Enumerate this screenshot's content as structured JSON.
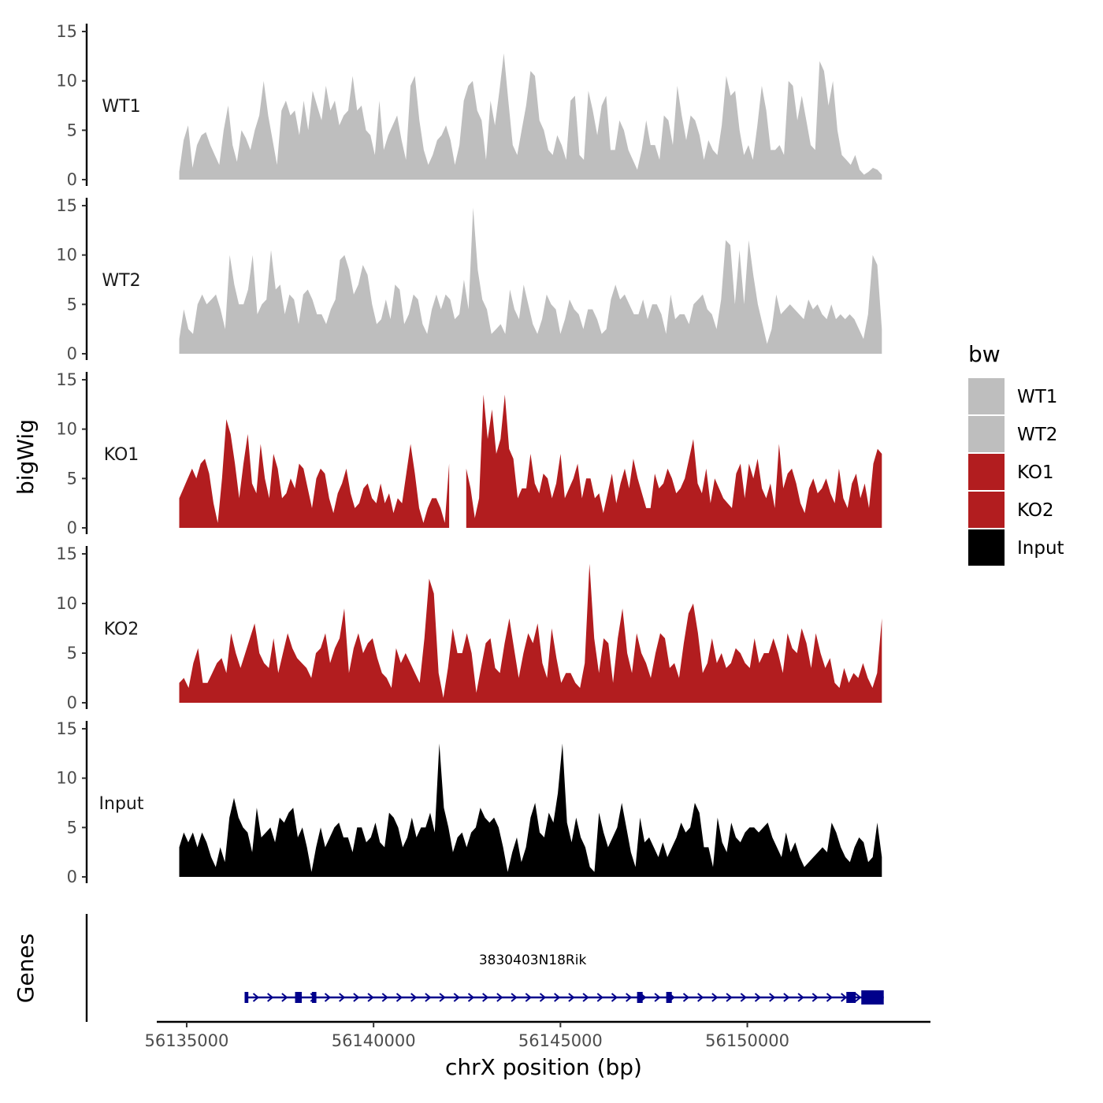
{
  "chart_data": {
    "type": "area",
    "ylabel": "bigWig",
    "genes_label": "Genes",
    "xlabel": "chrX position (bp)",
    "xlim": [
      56134200,
      56154900
    ],
    "data_x_range": [
      56134800,
      56153600
    ],
    "x_ticks": [
      56135000,
      56140000,
      56145000,
      56150000
    ],
    "x_tick_labels": [
      "56135000",
      "56140000",
      "56145000",
      "56150000"
    ],
    "ylim": [
      0,
      15
    ],
    "y_ticks": [
      0,
      5,
      10,
      15
    ],
    "y_tick_labels": [
      "0",
      "5",
      "10",
      "15"
    ],
    "colors": {
      "WT": "#bebebe",
      "KO": "#b21d1f",
      "Input": "#000000",
      "gene": "#00008b"
    },
    "tracks": [
      {
        "name": "WT1",
        "color": "#bebebe",
        "values": [
          0.8,
          4,
          5.5,
          1.2,
          3.5,
          4.5,
          4.8,
          3.5,
          2.5,
          1.5,
          5,
          7.5,
          3.5,
          1.8,
          5,
          4.2,
          3,
          5,
          6.5,
          10,
          6.5,
          4,
          1.5,
          7,
          8,
          6.5,
          7,
          4.5,
          8,
          5,
          9,
          7.5,
          6,
          9.5,
          7,
          8,
          5.5,
          6.5,
          7,
          10.5,
          7,
          7.5,
          5,
          4.5,
          2.5,
          8,
          3,
          4.5,
          5.5,
          6.5,
          4,
          2,
          9.5,
          10.5,
          6,
          3,
          1.5,
          2.5,
          4,
          4.5,
          5.5,
          4,
          1.5,
          3.5,
          8,
          9.5,
          10,
          7,
          6,
          2,
          8,
          5.5,
          9,
          12.8,
          8,
          3.5,
          2.5,
          5,
          7.5,
          11,
          10.5,
          6,
          5,
          3,
          2.5,
          4.5,
          3.5,
          2,
          8,
          8.5,
          2.5,
          2,
          9,
          7,
          4.5,
          7.5,
          8.5,
          3,
          3,
          6,
          5,
          3,
          2,
          1,
          3,
          6,
          3.5,
          3.5,
          2,
          6.5,
          6,
          3.5,
          9.5,
          6.5,
          4,
          6.5,
          6,
          4.5,
          2,
          4,
          3,
          2.5,
          5.5,
          10.5,
          8.5,
          9,
          5,
          2.5,
          3.5,
          2,
          5.5,
          9.5,
          7,
          3,
          3,
          3.5,
          2.5,
          10,
          9.5,
          6,
          8.5,
          6,
          3.5,
          3,
          12,
          11,
          7.5,
          10,
          5,
          2.5,
          2,
          1.5,
          2.5,
          1,
          0.5,
          0.8,
          1.2,
          1,
          0.5
        ]
      },
      {
        "name": "WT2",
        "color": "#bebebe",
        "values": [
          1.5,
          4.5,
          2.5,
          2,
          5,
          6,
          5,
          5.5,
          6,
          4.5,
          2.5,
          10,
          7,
          5,
          5,
          6.5,
          10,
          4,
          5,
          5.5,
          10.5,
          6.5,
          7,
          4,
          6,
          5.5,
          3,
          6,
          6.5,
          5.5,
          4,
          4,
          3,
          4.5,
          5.5,
          9.5,
          10,
          8.5,
          6,
          7,
          9,
          8,
          5,
          3,
          3.5,
          5.5,
          3.5,
          7,
          6.5,
          3,
          4,
          6,
          5.5,
          3,
          2,
          4.5,
          6,
          4.5,
          6,
          5.5,
          3.5,
          4,
          7.5,
          4.5,
          14.8,
          8.5,
          5.5,
          4.5,
          2,
          2.5,
          3,
          2,
          6.5,
          4.5,
          3.5,
          7,
          5,
          3,
          2,
          3.5,
          6,
          5,
          4.5,
          2,
          3.5,
          5.5,
          4.5,
          4,
          2.5,
          4.5,
          4.5,
          3.5,
          2,
          2.5,
          5.5,
          7,
          5.5,
          6,
          5,
          4,
          4,
          5.5,
          3.5,
          5,
          5,
          4,
          2,
          6,
          3.5,
          4,
          4,
          3,
          5,
          5.5,
          6,
          4.5,
          4,
          2.5,
          5.5,
          11.5,
          11,
          5,
          10.5,
          5,
          11.5,
          8,
          5,
          3,
          1,
          2.5,
          6,
          4,
          4.5,
          5,
          4.5,
          4,
          3.5,
          5.5,
          4.5,
          5,
          4,
          3.5,
          5,
          3.5,
          4,
          3.5,
          4,
          3.5,
          2.5,
          1.5,
          4,
          10,
          9,
          2.5
        ]
      },
      {
        "name": "KO1",
        "color": "#b21d1f",
        "values": [
          3,
          4,
          5,
          6,
          5,
          6.5,
          7,
          5.5,
          2.5,
          0.5,
          5,
          11,
          9.5,
          6.5,
          3,
          6.5,
          9.5,
          4.5,
          3.5,
          8.5,
          5,
          3,
          7.5,
          6,
          3,
          3.5,
          5,
          4,
          6.5,
          6,
          4,
          2,
          5,
          6,
          5.5,
          3,
          1.5,
          3.5,
          4.5,
          6,
          3.5,
          2,
          2.5,
          4,
          4.5,
          3,
          2.5,
          4.5,
          2.5,
          3.5,
          1.5,
          3,
          2.5,
          5.5,
          8.5,
          5.5,
          2,
          0.5,
          2,
          3,
          3,
          2,
          0.5,
          6.5,
          null,
          null,
          null,
          6,
          4,
          1,
          3,
          13.5,
          9,
          12,
          7.5,
          9,
          13.5,
          8,
          7,
          3,
          4,
          4,
          7.5,
          4.5,
          3.5,
          5.5,
          5,
          3,
          4.5,
          7.5,
          3,
          4,
          5,
          6.5,
          3,
          5,
          5,
          3,
          3.5,
          1.5,
          3.5,
          5.5,
          2.5,
          4.5,
          6,
          4,
          7,
          5,
          3.5,
          2,
          2,
          5.5,
          4,
          4.5,
          6,
          5,
          3.5,
          4,
          5,
          7,
          9,
          4.5,
          3.5,
          6,
          2.5,
          5,
          4,
          3,
          2.5,
          2,
          5.5,
          6.5,
          3,
          6.5,
          5,
          7,
          4,
          3,
          4.5,
          2,
          8.5,
          4,
          5.5,
          6,
          4.5,
          2.5,
          1.5,
          4,
          5,
          3.5,
          4,
          5,
          3.5,
          2.5,
          6,
          3,
          2,
          4.5,
          5.5,
          3,
          4.5,
          2,
          6.5,
          8,
          7.5
        ]
      },
      {
        "name": "KO2",
        "color": "#b21d1f",
        "values": [
          2,
          2.5,
          1.5,
          4,
          5.5,
          2,
          2,
          3,
          4,
          4.5,
          3,
          7,
          5,
          3.5,
          5,
          6.5,
          8,
          5,
          4,
          3.5,
          6.5,
          3,
          5,
          7,
          5.5,
          4.5,
          4,
          3.5,
          2.5,
          5,
          5.5,
          7,
          4,
          5.5,
          6.5,
          9.5,
          3,
          5.5,
          7,
          5,
          6,
          6.5,
          4.5,
          3,
          2.5,
          1.5,
          5.5,
          4,
          5,
          4,
          3,
          2,
          6.5,
          12.5,
          11,
          3,
          0.5,
          3.5,
          7.5,
          5,
          5,
          7,
          5,
          1,
          3.5,
          6,
          6.5,
          3.5,
          3,
          6,
          8.5,
          5.5,
          2.5,
          5,
          7,
          6,
          8,
          4,
          2.5,
          7.5,
          4.5,
          2,
          3,
          3,
          2,
          1.5,
          4,
          14,
          6.5,
          3,
          6.5,
          6,
          2,
          6.5,
          9.5,
          5,
          3,
          7,
          5,
          4,
          2.5,
          5,
          7,
          6.5,
          3.5,
          4,
          2.5,
          6,
          9,
          10,
          7,
          3,
          4,
          6.5,
          4,
          5,
          3.5,
          4,
          5.5,
          5,
          4,
          3.5,
          6.5,
          4,
          5,
          5,
          6.5,
          5,
          3,
          7,
          5.5,
          5,
          7.5,
          6,
          3.5,
          7,
          5,
          3.5,
          4.5,
          2,
          1.5,
          3.5,
          2,
          3,
          2.5,
          4,
          2.5,
          1.5,
          3,
          8.5
        ]
      },
      {
        "name": "Input",
        "color": "#000000",
        "values": [
          3,
          4.5,
          3.5,
          4.5,
          3,
          4.5,
          3.5,
          2,
          1,
          3,
          1.5,
          6,
          8,
          6,
          5,
          4.5,
          2.5,
          7,
          4,
          4.5,
          5,
          3.5,
          6,
          5.5,
          6.5,
          7,
          4,
          5,
          3,
          0.5,
          3,
          5,
          3,
          4,
          5,
          5.5,
          4,
          4,
          2.5,
          5,
          5,
          3.5,
          4,
          5.5,
          3.5,
          3,
          6.5,
          6,
          5,
          3,
          4,
          6,
          4,
          5,
          5,
          6.5,
          4.5,
          13.5,
          7,
          5,
          2.5,
          4,
          4.5,
          3,
          4.5,
          5,
          7,
          6,
          5.5,
          6,
          5,
          3,
          0.5,
          2.5,
          4,
          1.5,
          3,
          6,
          7.5,
          4.5,
          4,
          6.5,
          5.5,
          8.5,
          13.5,
          5.5,
          3.5,
          6,
          4,
          3,
          1,
          0.5,
          6.5,
          4.5,
          3,
          4,
          5,
          7.5,
          5,
          2.5,
          1,
          6,
          3.5,
          4,
          3,
          2,
          3.5,
          2,
          3,
          4,
          5.5,
          4.5,
          5,
          7.5,
          6.5,
          3,
          3,
          1,
          6,
          3.5,
          2.5,
          5.5,
          4,
          3.5,
          4.5,
          5,
          5,
          4.5,
          5,
          5.5,
          4,
          3,
          2,
          4.5,
          2.5,
          3.5,
          2,
          1,
          1.5,
          2,
          2.5,
          3,
          2.5,
          5.5,
          4.5,
          3,
          2,
          1.5,
          3,
          4,
          3.5,
          1.5,
          2,
          5.5,
          2
        ]
      }
    ],
    "legend": {
      "title": "bw",
      "entries": [
        {
          "label": "WT1",
          "color": "#bebebe"
        },
        {
          "label": "WT2",
          "color": "#bebebe"
        },
        {
          "label": "KO1",
          "color": "#b21d1f"
        },
        {
          "label": "KO2",
          "color": "#b21d1f"
        },
        {
          "label": "Input",
          "color": "#000000"
        }
      ]
    },
    "gene": {
      "name": "3830403N18Rik",
      "start": 56136550,
      "end": 56153650,
      "strand": "+",
      "exons": [
        {
          "start": 56136550,
          "end": 56136650
        },
        {
          "start": 56137900,
          "end": 56138080
        },
        {
          "start": 56138350,
          "end": 56138470
        },
        {
          "start": 56147050,
          "end": 56147200
        },
        {
          "start": 56147830,
          "end": 56147980
        },
        {
          "start": 56152650,
          "end": 56152900
        },
        {
          "start": 56153050,
          "end": 56153650
        }
      ]
    }
  }
}
